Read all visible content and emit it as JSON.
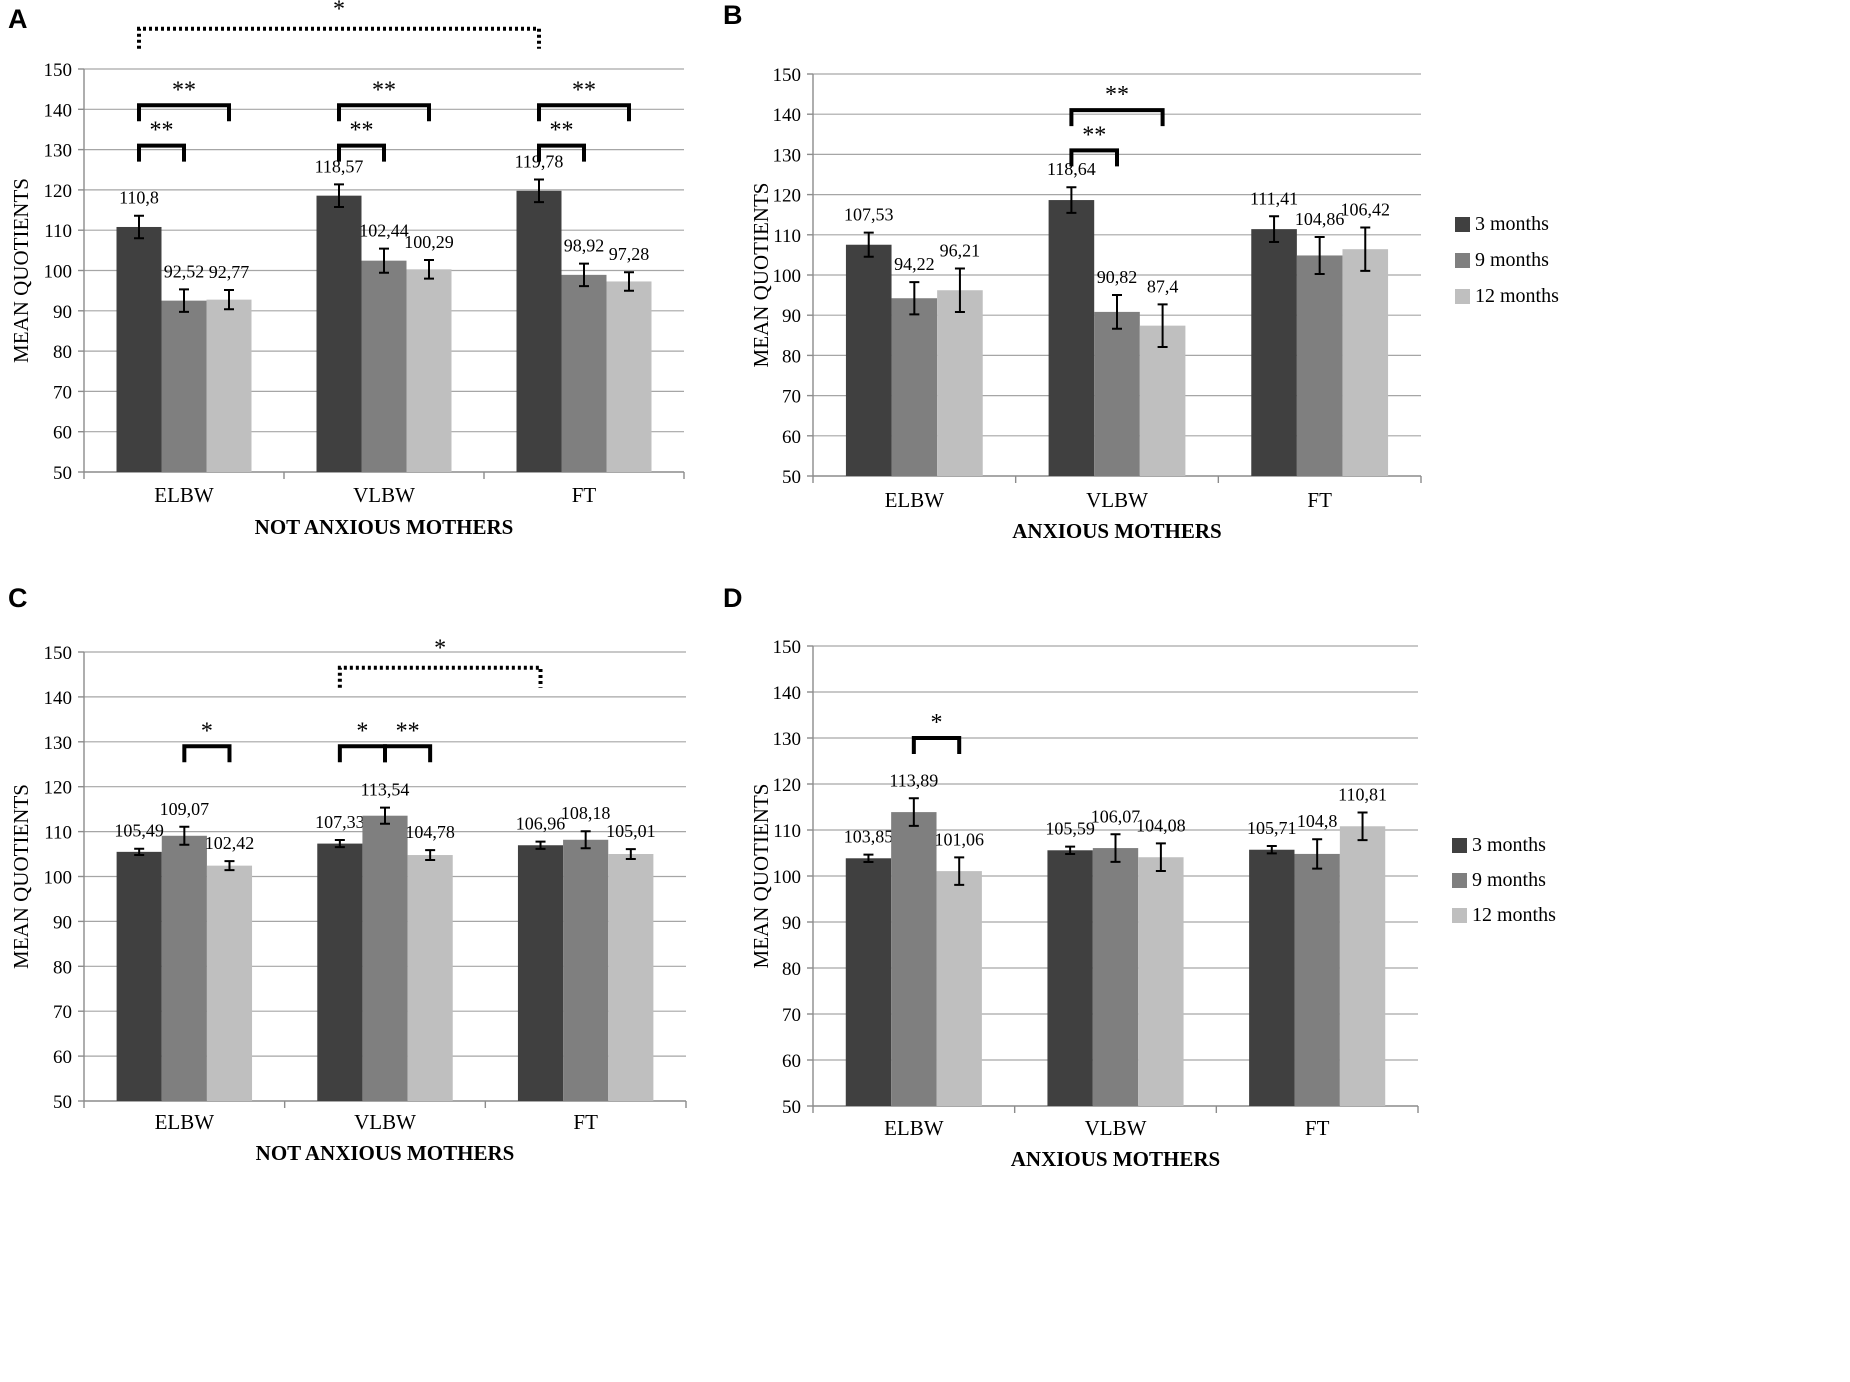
{
  "chart_data": [
    {
      "panel": "A",
      "type": "bar",
      "title": "NOT ANXIOUS MOTHERS",
      "xlabel": "NOT ANXIOUS MOTHERS",
      "ylabel": "MEAN  QUOTIENTS",
      "ylim": [
        50,
        150
      ],
      "yticks": [
        50,
        60,
        70,
        80,
        90,
        100,
        110,
        120,
        130,
        140,
        150
      ],
      "grid": true,
      "categories": [
        "ELBW",
        "VLBW",
        "FT"
      ],
      "series": [
        {
          "name": "3 months",
          "values": [
            110.8,
            118.57,
            119.78
          ],
          "labels": [
            "110,8",
            "118,57",
            "119,78"
          ],
          "errors": [
            2.8,
            2.8,
            2.8
          ]
        },
        {
          "name": "9 months",
          "values": [
            92.52,
            102.44,
            98.92
          ],
          "labels": [
            "92,52",
            "102,44",
            "98,92"
          ],
          "errors": [
            2.8,
            3.0,
            2.8
          ]
        },
        {
          "name": "12 months",
          "values": [
            92.77,
            100.29,
            97.28
          ],
          "labels": [
            "92,77",
            "100,29",
            "97,28"
          ],
          "errors": [
            2.4,
            2.3,
            2.3
          ]
        }
      ],
      "legend": null,
      "annotations": [
        {
          "text": "**",
          "kind": "bracket",
          "category": 0,
          "from": 0,
          "to": 1,
          "level": 131
        },
        {
          "text": "**",
          "kind": "bracket",
          "category": 0,
          "from": 0,
          "to": 2,
          "level": 141
        },
        {
          "text": "**",
          "kind": "bracket",
          "category": 1,
          "from": 0,
          "to": 1,
          "level": 131
        },
        {
          "text": "**",
          "kind": "bracket",
          "category": 1,
          "from": 0,
          "to": 2,
          "level": 141
        },
        {
          "text": "**",
          "kind": "bracket",
          "category": 2,
          "from": 0,
          "to": 1,
          "level": 131
        },
        {
          "text": "**",
          "kind": "bracket",
          "category": 2,
          "from": 0,
          "to": 2,
          "level": 141
        },
        {
          "text": "*",
          "kind": "dotted",
          "fromCat": 0,
          "toCat": 2,
          "bar": 0,
          "level": 160
        }
      ]
    },
    {
      "panel": "B",
      "type": "bar",
      "title": "ANXIOUS MOTHERS",
      "xlabel": "ANXIOUS MOTHERS",
      "ylabel": "MEAN QUOTIENTS",
      "ylim": [
        50,
        150
      ],
      "yticks": [
        50,
        60,
        70,
        80,
        90,
        100,
        110,
        120,
        130,
        140,
        150
      ],
      "grid": true,
      "categories": [
        "ELBW",
        "VLBW",
        "FT"
      ],
      "series": [
        {
          "name": "3 months",
          "values": [
            107.53,
            118.64,
            111.41
          ],
          "labels": [
            "107,53",
            "118,64",
            "111,41"
          ],
          "errors": [
            3.0,
            3.2,
            3.2
          ]
        },
        {
          "name": "9 months",
          "values": [
            94.22,
            90.82,
            104.86
          ],
          "labels": [
            "94,22",
            "90,82",
            "104,86"
          ],
          "errors": [
            4.0,
            4.2,
            4.6
          ]
        },
        {
          "name": "12 months",
          "values": [
            96.21,
            87.4,
            106.42
          ],
          "labels": [
            "96,21",
            "87,4",
            "106,42"
          ],
          "errors": [
            5.4,
            5.3,
            5.4
          ]
        }
      ],
      "legend": [
        "3 months",
        "9 months",
        "12 months"
      ],
      "annotations": [
        {
          "text": "**",
          "kind": "bracket",
          "category": 1,
          "from": 0,
          "to": 1,
          "level": 131
        },
        {
          "text": "**",
          "kind": "bracket",
          "category": 1,
          "from": 0,
          "to": 2,
          "level": 141
        }
      ]
    },
    {
      "panel": "C",
      "type": "bar",
      "title": "NOT ANXIOUS MOTHERS",
      "xlabel": "NOT ANXIOUS MOTHERS",
      "ylabel": "MEAN QUOTIENTS",
      "ylim": [
        50,
        150
      ],
      "yticks": [
        50,
        60,
        70,
        80,
        90,
        100,
        110,
        120,
        130,
        140,
        150
      ],
      "grid": true,
      "categories": [
        "ELBW",
        "VLBW",
        "FT"
      ],
      "series": [
        {
          "name": "3 months",
          "values": [
            105.49,
            107.33,
            106.96
          ],
          "labels": [
            "105,49",
            "107,33",
            "106,96"
          ],
          "errors": [
            0.7,
            0.8,
            0.8
          ]
        },
        {
          "name": "9 months",
          "values": [
            109.07,
            113.54,
            108.18
          ],
          "labels": [
            "109,07",
            "113,54",
            "108,18"
          ],
          "errors": [
            2.0,
            1.8,
            1.9
          ]
        },
        {
          "name": "12 months",
          "values": [
            102.42,
            104.78,
            105.01
          ],
          "labels": [
            "102,42",
            "104,78",
            "105,01"
          ],
          "errors": [
            1.0,
            1.1,
            1.1
          ]
        }
      ],
      "legend": null,
      "annotations": [
        {
          "text": "*",
          "kind": "bracket",
          "category": 0,
          "from": 1,
          "to": 2,
          "level": 129
        },
        {
          "text": "*",
          "kind": "bracket",
          "category": 1,
          "from": 0,
          "to": 1,
          "level": 129
        },
        {
          "text": "**",
          "kind": "bracket",
          "category": 1,
          "from": 1,
          "to": 2,
          "level": 129
        },
        {
          "text": "*",
          "kind": "dotted",
          "fromCat": 1,
          "toCat": 2,
          "bar": 0,
          "level": 146.5
        }
      ]
    },
    {
      "panel": "D",
      "type": "bar",
      "title": "ANXIOUS MOTHERS",
      "xlabel": "ANXIOUS MOTHERS",
      "ylabel": "MEAN QUOTIENTS",
      "ylim": [
        50,
        150
      ],
      "yticks": [
        50,
        60,
        70,
        80,
        90,
        100,
        110,
        120,
        130,
        140,
        150
      ],
      "grid": true,
      "categories": [
        "ELBW",
        "VLBW",
        "FT"
      ],
      "series": [
        {
          "name": "3 months",
          "values": [
            103.85,
            105.59,
            105.71
          ],
          "labels": [
            "103,85",
            "105,59",
            "105,71"
          ],
          "errors": [
            0.8,
            0.8,
            0.8
          ]
        },
        {
          "name": "9 months",
          "values": [
            113.89,
            106.07,
            104.8
          ],
          "labels": [
            "113,89",
            "106,07",
            "104,8"
          ],
          "errors": [
            3.0,
            3.0,
            3.2
          ]
        },
        {
          "name": "12 months",
          "values": [
            101.06,
            104.08,
            110.81
          ],
          "labels": [
            "101,06",
            "104,08",
            "110,81"
          ],
          "errors": [
            3.0,
            3.0,
            3.0
          ]
        }
      ],
      "legend": [
        "3 months",
        "9 months",
        "12 months"
      ],
      "annotations": [
        {
          "text": "*",
          "kind": "bracket",
          "category": 0,
          "from": 1,
          "to": 2,
          "level": 130
        }
      ]
    }
  ],
  "panel_letters": [
    "A",
    "B",
    "C",
    "D"
  ],
  "colors": {
    "3 months": "#404040",
    "9 months": "#7f7f7f",
    "12 months": "#bfbfbf"
  }
}
